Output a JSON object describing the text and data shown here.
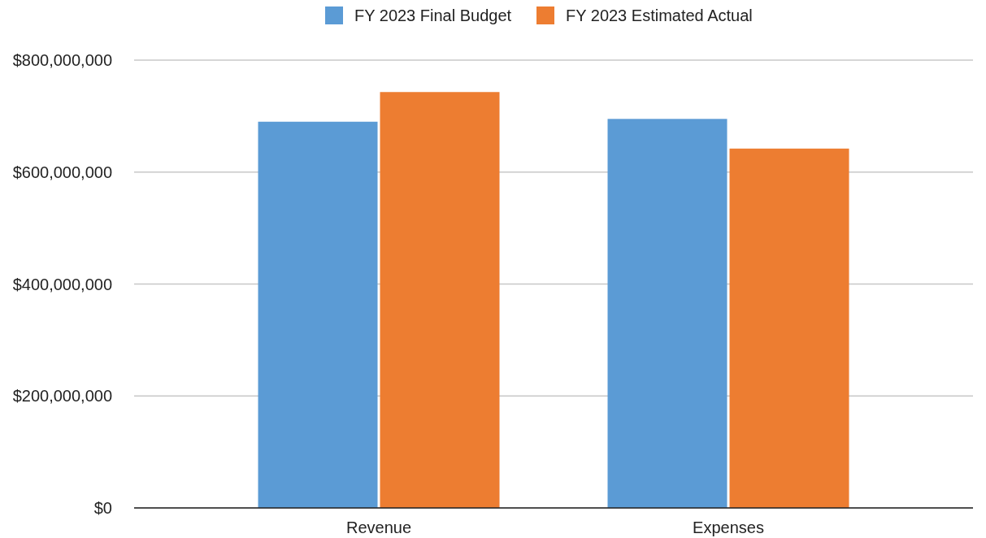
{
  "chart_data": {
    "type": "bar",
    "categories": [
      "Revenue",
      "Expenses"
    ],
    "series": [
      {
        "name": "FY 2023 Final Budget",
        "color": "#5b9bd5",
        "values": [
          690000000,
          695000000
        ]
      },
      {
        "name": "FY 2023 Estimated Actual",
        "color": "#ed7d31",
        "values": [
          743000000,
          642000000
        ]
      }
    ],
    "ylim": [
      0,
      800000000
    ],
    "yticks": [
      {
        "value": 0,
        "label": "$0"
      },
      {
        "value": 200000000,
        "label": "$200,000,000"
      },
      {
        "value": 400000000,
        "label": "$400,000,000"
      },
      {
        "value": 600000000,
        "label": "$600,000,000"
      },
      {
        "value": 800000000,
        "label": "$800,000,000"
      }
    ],
    "grid": "y",
    "legend": "top"
  }
}
